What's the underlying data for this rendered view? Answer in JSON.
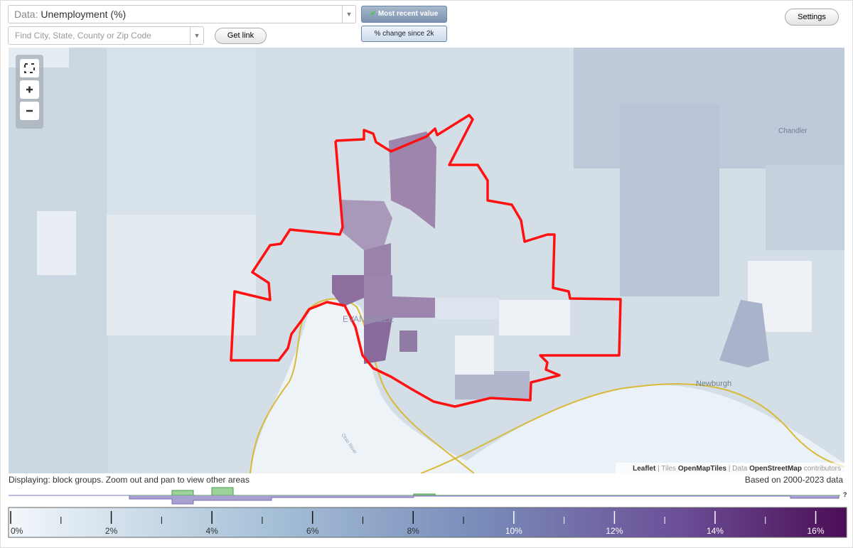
{
  "controls": {
    "data_label": "Data:",
    "data_value": "Unemployment (%)",
    "search_placeholder": "Find City, State, County or Zip Code",
    "get_link": "Get link",
    "most_recent": "Most recent value",
    "percent_change": "% change since 2k",
    "settings": "Settings"
  },
  "map": {
    "labels": {
      "chandler": "Chandler",
      "newburgh": "Newburgh",
      "evansville": "EVANSVILLE",
      "river": "Ohio River"
    },
    "attribution": {
      "leaflet": "Leaflet",
      "tiles": "| Tiles",
      "openmaptiles": "OpenMapTiles",
      "data": "| Data",
      "osm": "OpenStreetMap",
      "contributors": "contributors"
    }
  },
  "footer": {
    "displaying": "Displaying: block groups. Zoom out and pan to view other areas",
    "based_on": "Based on 2000-2023 data",
    "help": "?"
  },
  "legend": {
    "range": [
      0,
      16.6
    ],
    "ticks": [
      {
        "value": 0,
        "label": "0%"
      },
      {
        "value": 2,
        "label": "2%"
      },
      {
        "value": 4,
        "label": "4%"
      },
      {
        "value": 6,
        "label": "6%"
      },
      {
        "value": 8,
        "label": "8%"
      },
      {
        "value": 10,
        "label": "10%"
      },
      {
        "value": 12,
        "label": "12%"
      },
      {
        "value": 14,
        "label": "14%"
      },
      {
        "value": 16,
        "label": "16%"
      }
    ],
    "minor_ticks": [
      1,
      3,
      5,
      7,
      9,
      11,
      13,
      15
    ]
  }
}
